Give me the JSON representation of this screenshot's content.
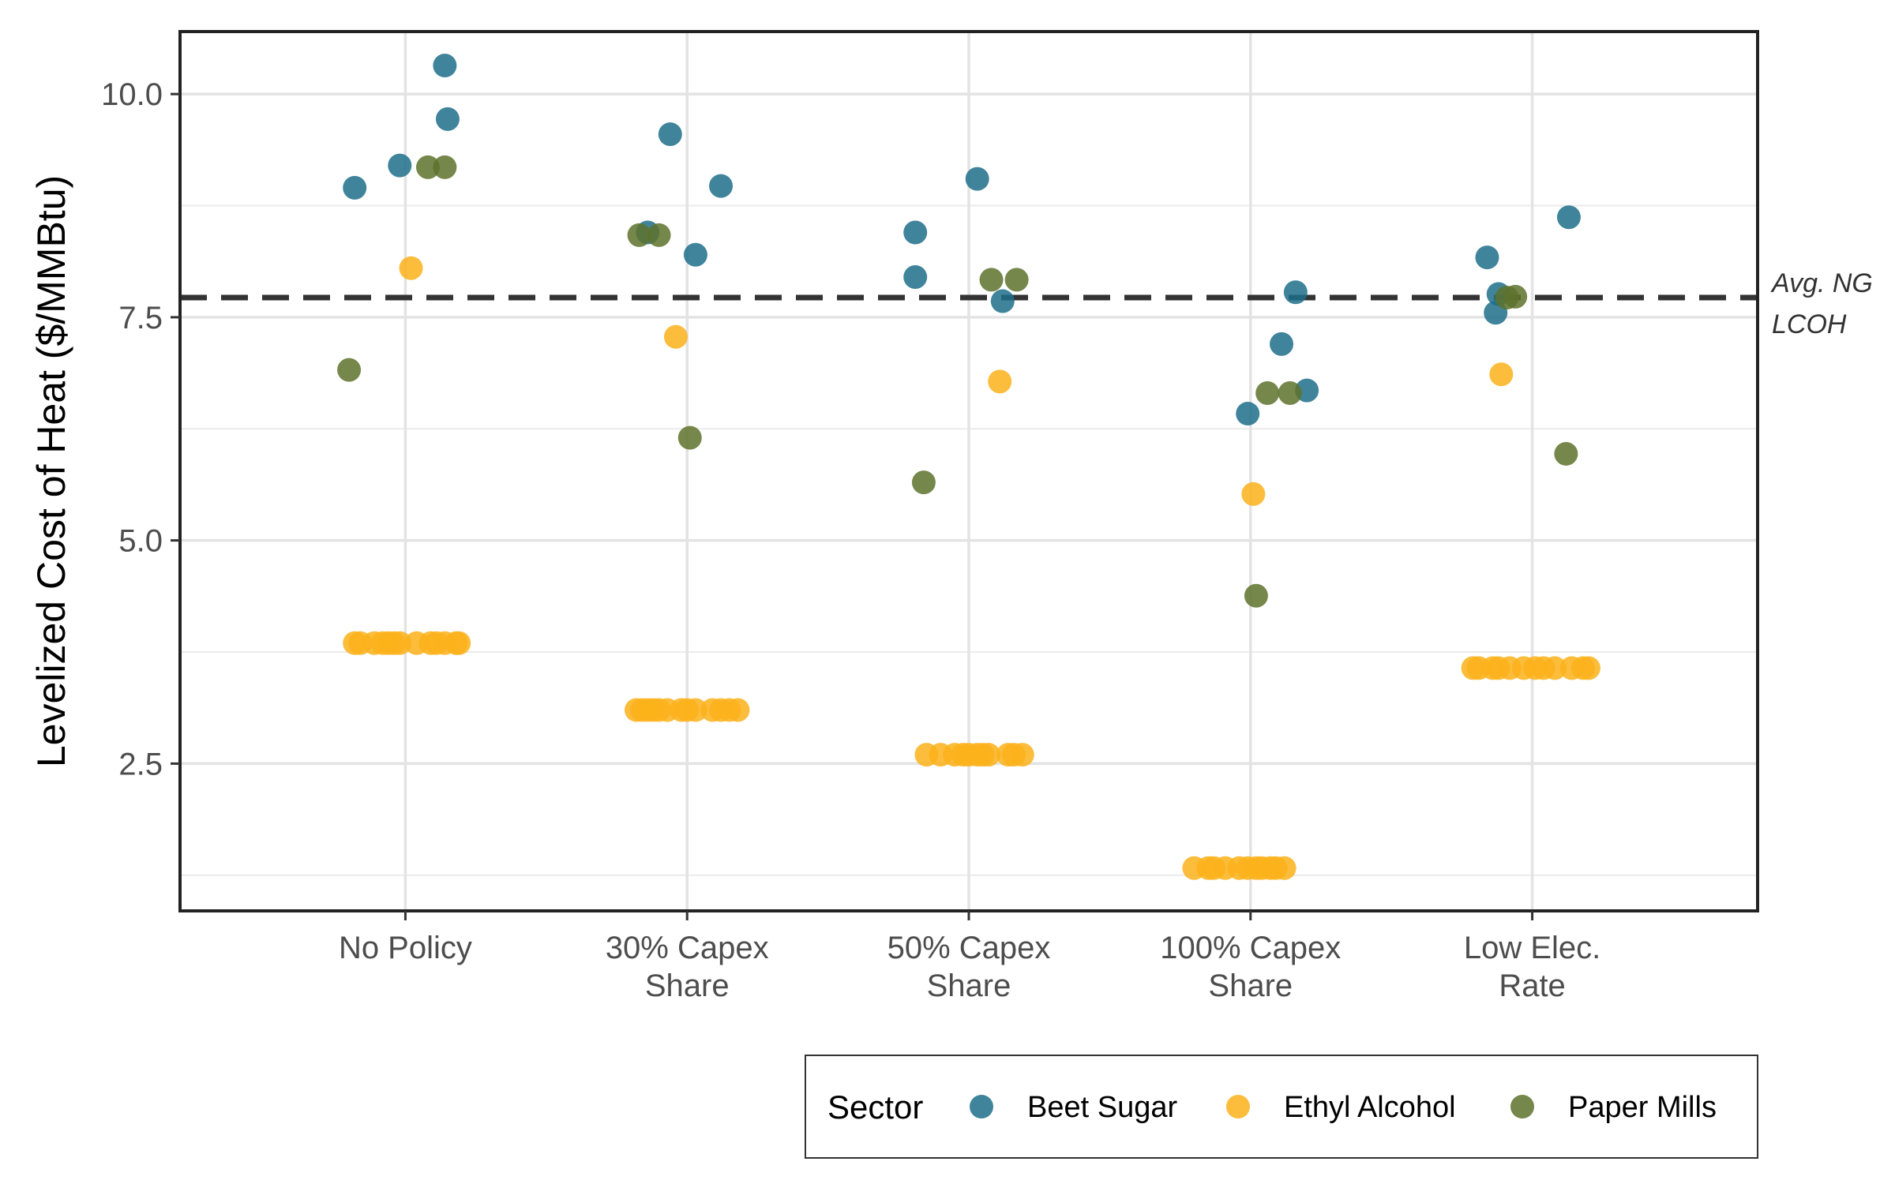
{
  "chart_data": {
    "type": "scatter",
    "ylabel": "Levelized Cost of Heat ($/MMBtu)",
    "xlabel": "",
    "ylim": [
      0.85,
      10.7
    ],
    "yticks": [
      2.5,
      5.0,
      7.5,
      10.0
    ],
    "ytick_labels": [
      "2.5",
      "5.0",
      "7.5",
      "10.0"
    ],
    "categories": [
      [
        "No Policy"
      ],
      [
        "30% Capex",
        "Share"
      ],
      [
        "50% Capex",
        "Share"
      ],
      [
        "100% Capex",
        "Share"
      ],
      [
        "Low Elec.",
        "Rate"
      ]
    ],
    "reference_line": {
      "y": 7.72,
      "style": "dashed",
      "label": [
        "Avg. NG",
        "LCOH"
      ]
    },
    "grid": true,
    "legend": {
      "title": "Sector",
      "position": "bottom-right"
    },
    "series": [
      {
        "name": "Beet Sugar",
        "color": "#1f6f8b",
        "points": [
          {
            "x": 0,
            "dx": -0.18,
            "y": 8.95
          },
          {
            "x": 0,
            "dx": -0.02,
            "y": 9.2
          },
          {
            "x": 0,
            "dx": 0.14,
            "y": 10.32
          },
          {
            "x": 0,
            "dx": 0.15,
            "y": 9.72
          },
          {
            "x": 1,
            "dx": -0.14,
            "y": 8.45
          },
          {
            "x": 1,
            "dx": -0.06,
            "y": 9.55
          },
          {
            "x": 1,
            "dx": 0.03,
            "y": 8.2
          },
          {
            "x": 1,
            "dx": 0.12,
            "y": 8.97
          },
          {
            "x": 2,
            "dx": -0.19,
            "y": 8.45
          },
          {
            "x": 2,
            "dx": -0.19,
            "y": 7.95
          },
          {
            "x": 2,
            "dx": 0.03,
            "y": 9.05
          },
          {
            "x": 2,
            "dx": 0.12,
            "y": 7.68
          },
          {
            "x": 3,
            "dx": -0.01,
            "y": 6.42
          },
          {
            "x": 3,
            "dx": 0.11,
            "y": 7.2
          },
          {
            "x": 3,
            "dx": 0.16,
            "y": 7.78
          },
          {
            "x": 3,
            "dx": 0.2,
            "y": 6.68
          },
          {
            "x": 4,
            "dx": -0.16,
            "y": 8.17
          },
          {
            "x": 4,
            "dx": -0.13,
            "y": 7.55
          },
          {
            "x": 4,
            "dx": -0.12,
            "y": 7.76
          },
          {
            "x": 4,
            "dx": 0.13,
            "y": 8.62
          }
        ]
      },
      {
        "name": "Ethyl Alcohol",
        "color": "#fbb21a",
        "points": [
          {
            "x": 0,
            "dx": 0.02,
            "y": 8.05
          },
          {
            "x": 0,
            "dx": -0.18,
            "y": 3.85
          },
          {
            "x": 0,
            "dx": -0.16,
            "y": 3.85
          },
          {
            "x": 0,
            "dx": -0.11,
            "y": 3.85
          },
          {
            "x": 0,
            "dx": -0.08,
            "y": 3.85
          },
          {
            "x": 0,
            "dx": -0.06,
            "y": 3.85
          },
          {
            "x": 0,
            "dx": -0.04,
            "y": 3.85
          },
          {
            "x": 0,
            "dx": -0.02,
            "y": 3.85
          },
          {
            "x": 0,
            "dx": 0.04,
            "y": 3.85
          },
          {
            "x": 0,
            "dx": 0.09,
            "y": 3.85
          },
          {
            "x": 0,
            "dx": 0.11,
            "y": 3.85
          },
          {
            "x": 0,
            "dx": 0.14,
            "y": 3.85
          },
          {
            "x": 0,
            "dx": 0.18,
            "y": 3.85
          },
          {
            "x": 0,
            "dx": 0.19,
            "y": 3.85
          },
          {
            "x": 1,
            "dx": -0.04,
            "y": 7.28
          },
          {
            "x": 1,
            "dx": -0.18,
            "y": 3.1
          },
          {
            "x": 1,
            "dx": -0.16,
            "y": 3.1
          },
          {
            "x": 1,
            "dx": -0.14,
            "y": 3.1
          },
          {
            "x": 1,
            "dx": -0.12,
            "y": 3.1
          },
          {
            "x": 1,
            "dx": -0.1,
            "y": 3.1
          },
          {
            "x": 1,
            "dx": -0.07,
            "y": 3.1
          },
          {
            "x": 1,
            "dx": -0.02,
            "y": 3.1
          },
          {
            "x": 1,
            "dx": 0.0,
            "y": 3.1
          },
          {
            "x": 1,
            "dx": 0.03,
            "y": 3.1
          },
          {
            "x": 1,
            "dx": 0.09,
            "y": 3.1
          },
          {
            "x": 1,
            "dx": 0.12,
            "y": 3.1
          },
          {
            "x": 1,
            "dx": 0.15,
            "y": 3.1
          },
          {
            "x": 1,
            "dx": 0.18,
            "y": 3.1
          },
          {
            "x": 2,
            "dx": 0.11,
            "y": 6.78
          },
          {
            "x": 2,
            "dx": -0.15,
            "y": 2.6
          },
          {
            "x": 2,
            "dx": -0.1,
            "y": 2.6
          },
          {
            "x": 2,
            "dx": -0.05,
            "y": 2.6
          },
          {
            "x": 2,
            "dx": -0.02,
            "y": 2.6
          },
          {
            "x": 2,
            "dx": 0.0,
            "y": 2.6
          },
          {
            "x": 2,
            "dx": 0.03,
            "y": 2.6
          },
          {
            "x": 2,
            "dx": 0.05,
            "y": 2.6
          },
          {
            "x": 2,
            "dx": 0.07,
            "y": 2.6
          },
          {
            "x": 2,
            "dx": 0.14,
            "y": 2.6
          },
          {
            "x": 2,
            "dx": 0.16,
            "y": 2.6
          },
          {
            "x": 2,
            "dx": 0.19,
            "y": 2.6
          },
          {
            "x": 3,
            "dx": 0.01,
            "y": 5.52
          },
          {
            "x": 3,
            "dx": -0.2,
            "y": 1.33
          },
          {
            "x": 3,
            "dx": -0.15,
            "y": 1.33
          },
          {
            "x": 3,
            "dx": -0.13,
            "y": 1.33
          },
          {
            "x": 3,
            "dx": -0.09,
            "y": 1.33
          },
          {
            "x": 3,
            "dx": -0.04,
            "y": 1.33
          },
          {
            "x": 3,
            "dx": -0.01,
            "y": 1.33
          },
          {
            "x": 3,
            "dx": 0.02,
            "y": 1.33
          },
          {
            "x": 3,
            "dx": 0.04,
            "y": 1.33
          },
          {
            "x": 3,
            "dx": 0.07,
            "y": 1.33
          },
          {
            "x": 3,
            "dx": 0.09,
            "y": 1.33
          },
          {
            "x": 3,
            "dx": 0.12,
            "y": 1.33
          },
          {
            "x": 4,
            "dx": -0.11,
            "y": 6.86
          },
          {
            "x": 4,
            "dx": -0.21,
            "y": 3.57
          },
          {
            "x": 4,
            "dx": -0.19,
            "y": 3.57
          },
          {
            "x": 4,
            "dx": -0.14,
            "y": 3.57
          },
          {
            "x": 4,
            "dx": -0.12,
            "y": 3.57
          },
          {
            "x": 4,
            "dx": -0.08,
            "y": 3.57
          },
          {
            "x": 4,
            "dx": -0.03,
            "y": 3.57
          },
          {
            "x": 4,
            "dx": 0.01,
            "y": 3.57
          },
          {
            "x": 4,
            "dx": 0.04,
            "y": 3.57
          },
          {
            "x": 4,
            "dx": 0.08,
            "y": 3.57
          },
          {
            "x": 4,
            "dx": 0.14,
            "y": 3.57
          },
          {
            "x": 4,
            "dx": 0.18,
            "y": 3.57
          },
          {
            "x": 4,
            "dx": 0.2,
            "y": 3.57
          }
        ]
      },
      {
        "name": "Paper Mills",
        "color": "#5e722d",
        "points": [
          {
            "x": 0,
            "dx": -0.2,
            "y": 6.91
          },
          {
            "x": 0,
            "dx": 0.08,
            "y": 9.18
          },
          {
            "x": 0,
            "dx": 0.14,
            "y": 9.18
          },
          {
            "x": 1,
            "dx": -0.17,
            "y": 8.42
          },
          {
            "x": 1,
            "dx": -0.1,
            "y": 8.42
          },
          {
            "x": 1,
            "dx": 0.01,
            "y": 6.15
          },
          {
            "x": 2,
            "dx": -0.16,
            "y": 5.65
          },
          {
            "x": 2,
            "dx": 0.08,
            "y": 7.92
          },
          {
            "x": 2,
            "dx": 0.17,
            "y": 7.92
          },
          {
            "x": 3,
            "dx": 0.02,
            "y": 4.38
          },
          {
            "x": 3,
            "dx": 0.06,
            "y": 6.65
          },
          {
            "x": 3,
            "dx": 0.14,
            "y": 6.65
          },
          {
            "x": 4,
            "dx": -0.09,
            "y": 7.72
          },
          {
            "x": 4,
            "dx": -0.06,
            "y": 7.73
          },
          {
            "x": 4,
            "dx": 0.12,
            "y": 5.97
          }
        ]
      }
    ]
  }
}
